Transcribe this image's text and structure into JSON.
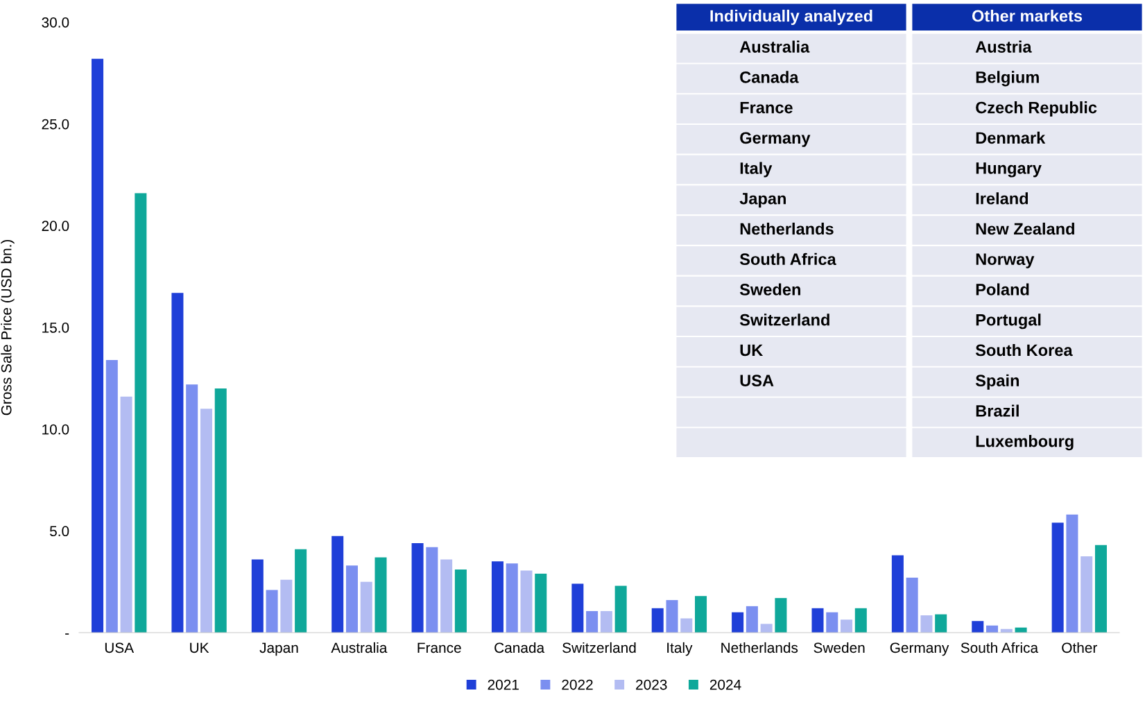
{
  "chart_data": [
    {
      "type": "bar",
      "ylabel": "Gross Sale Price (USD bn.)",
      "categories": [
        "USA",
        "UK",
        "Japan",
        "Australia",
        "France",
        "Canada",
        "Switzerland",
        "Italy",
        "Netherlands",
        "Sweden",
        "Germany",
        "South Africa",
        "Other"
      ],
      "series": [
        {
          "name": "2021",
          "color": "#1f3fd8",
          "values": [
            28.2,
            16.7,
            3.6,
            4.75,
            4.4,
            3.5,
            2.4,
            1.2,
            1.0,
            1.2,
            3.8,
            0.57,
            5.4
          ]
        },
        {
          "name": "2022",
          "color": "#7b8ff0",
          "values": [
            13.4,
            12.2,
            2.1,
            3.3,
            4.2,
            3.4,
            1.06,
            1.6,
            1.3,
            1.0,
            2.7,
            0.35,
            5.8
          ]
        },
        {
          "name": "2023",
          "color": "#b3bcf2",
          "values": [
            11.6,
            11.0,
            2.6,
            2.5,
            3.6,
            3.05,
            1.06,
            0.7,
            0.43,
            0.64,
            0.85,
            0.18,
            3.75
          ]
        },
        {
          "name": "2024",
          "color": "#0fa89a",
          "values": [
            21.6,
            12.0,
            4.1,
            3.7,
            3.1,
            2.9,
            2.3,
            1.8,
            1.7,
            1.2,
            0.9,
            0.25,
            4.3
          ]
        }
      ],
      "ylim": [
        0,
        30
      ],
      "yticks": [
        {
          "value": 0,
          "label": "-"
        },
        {
          "value": 5,
          "label": "5.0"
        },
        {
          "value": 10,
          "label": "10.0"
        },
        {
          "value": 15,
          "label": "15.0"
        },
        {
          "value": 20,
          "label": "20.0"
        },
        {
          "value": 25,
          "label": "25.0"
        },
        {
          "value": 30,
          "label": "30.0"
        }
      ],
      "grid": false,
      "legend": "bottom"
    },
    {
      "type": "other",
      "categories": [
        "Individually analyzed",
        "Other markets"
      ],
      "cell_labels": [
        [
          "Australia",
          "Austria"
        ],
        [
          "Canada",
          "Belgium"
        ],
        [
          "France",
          "Czech Republic"
        ],
        [
          "Germany",
          "Denmark"
        ],
        [
          "Italy",
          "Hungary"
        ],
        [
          "Japan",
          "Ireland"
        ],
        [
          "Netherlands",
          "New Zealand"
        ],
        [
          "South Africa",
          "Norway"
        ],
        [
          "Sweden",
          "Poland"
        ],
        [
          "Switzerland",
          "Portugal"
        ],
        [
          "UK",
          "South Korea"
        ],
        [
          "USA",
          "Spain"
        ],
        [
          null,
          "Brazil"
        ],
        [
          null,
          "Luxembourg"
        ]
      ]
    }
  ]
}
